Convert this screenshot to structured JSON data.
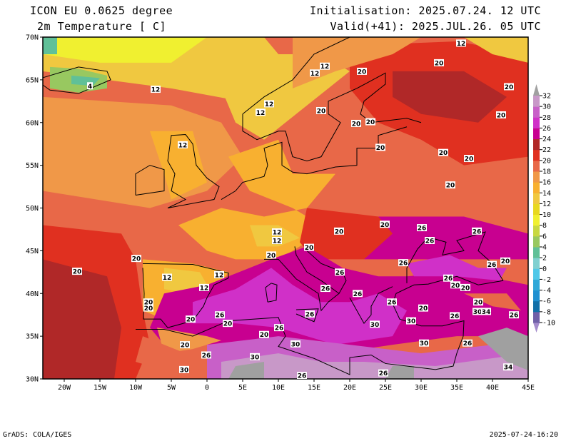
{
  "header": {
    "model": "ICON EU 0.0625 degree",
    "variable": "2m Temperature [ C]",
    "initialisation": "Initialisation: 2025.07.24. 12 UTC",
    "valid": "Valid(+41): 2025.JUL.26. 05 UTC"
  },
  "footer": {
    "software": "GrADS: COLA/IGES",
    "timestamp": "2025-07-24-16:20"
  },
  "axes": {
    "lat_labels": [
      "70N",
      "65N",
      "60N",
      "55N",
      "50N",
      "45N",
      "40N",
      "35N",
      "30N"
    ],
    "lat_values": [
      70,
      65,
      60,
      55,
      50,
      45,
      40,
      35,
      30
    ],
    "lon_labels": [
      "20W",
      "15W",
      "10W",
      "5W",
      "0",
      "5E",
      "10E",
      "15E",
      "20E",
      "25E",
      "30E",
      "35E",
      "40E",
      "45E"
    ],
    "lon_values": [
      -20,
      -15,
      -10,
      -5,
      0,
      5,
      10,
      15,
      20,
      25,
      30,
      35,
      40,
      45
    ],
    "lon_range": [
      -23,
      45
    ],
    "lat_range": [
      30,
      70
    ]
  },
  "colorbar": {
    "levels": [
      "-10",
      "-8",
      "-6",
      "-4",
      "-2",
      "0",
      "2",
      "4",
      "6",
      "8",
      "10",
      "12",
      "14",
      "16",
      "18",
      "20",
      "22",
      "24",
      "26",
      "28",
      "30",
      "32"
    ],
    "colors": [
      "#a48ccc",
      "#7060a8",
      "#1270a8",
      "#2090d0",
      "#30a8d8",
      "#50c8e8",
      "#80d0d0",
      "#60c098",
      "#98c860",
      "#c8d840",
      "#f0f030",
      "#e8d820",
      "#f0c840",
      "#f8b030",
      "#f09848",
      "#e86848",
      "#e03020",
      "#b02828",
      "#c80090",
      "#d030c8",
      "#c860c8",
      "#c898c8",
      "#a0a0a0"
    ]
  },
  "contour_labels": [
    {
      "v": "12",
      "lon": 35.6,
      "lat": 69.3
    },
    {
      "v": "20",
      "lon": 32.5,
      "lat": 67
    },
    {
      "v": "12",
      "lon": 16.5,
      "lat": 66.6
    },
    {
      "v": "12",
      "lon": 15.1,
      "lat": 65.8
    },
    {
      "v": "20",
      "lon": 21.7,
      "lat": 66
    },
    {
      "v": "4",
      "lon": -16.4,
      "lat": 64.3
    },
    {
      "v": "12",
      "lon": -7.2,
      "lat": 63.9
    },
    {
      "v": "20",
      "lon": 42.3,
      "lat": 64.2
    },
    {
      "v": "12",
      "lon": 8.7,
      "lat": 62.2
    },
    {
      "v": "20",
      "lon": 16,
      "lat": 61.4
    },
    {
      "v": "12",
      "lon": 7.5,
      "lat": 61.2
    },
    {
      "v": "20",
      "lon": 20.9,
      "lat": 59.9
    },
    {
      "v": "20",
      "lon": 22.9,
      "lat": 60.1
    },
    {
      "v": "20",
      "lon": 41.2,
      "lat": 60.9
    },
    {
      "v": "20",
      "lon": 24.3,
      "lat": 57.1
    },
    {
      "v": "12",
      "lon": -3.4,
      "lat": 57.4
    },
    {
      "v": "20",
      "lon": 33.1,
      "lat": 56.5
    },
    {
      "v": "20",
      "lon": 36.7,
      "lat": 55.8
    },
    {
      "v": "20",
      "lon": 34.1,
      "lat": 52.7
    },
    {
      "v": "20",
      "lon": 24.9,
      "lat": 48.1
    },
    {
      "v": "26",
      "lon": 30.1,
      "lat": 47.7
    },
    {
      "v": "26",
      "lon": 37.8,
      "lat": 47.3
    },
    {
      "v": "12",
      "lon": 9.8,
      "lat": 47.2
    },
    {
      "v": "20",
      "lon": 18.5,
      "lat": 47.3
    },
    {
      "v": "12",
      "lon": 9.8,
      "lat": 46.2
    },
    {
      "v": "26",
      "lon": 31.2,
      "lat": 46.2
    },
    {
      "v": "20",
      "lon": 14.3,
      "lat": 45.4
    },
    {
      "v": "20",
      "lon": 9,
      "lat": 44.5
    },
    {
      "v": "20",
      "lon": -9.9,
      "lat": 44.1
    },
    {
      "v": "20",
      "lon": -18.2,
      "lat": 42.6
    },
    {
      "v": "20",
      "lon": 41.8,
      "lat": 43.8
    },
    {
      "v": "26",
      "lon": 39.9,
      "lat": 43.4
    },
    {
      "v": "26",
      "lon": 18.6,
      "lat": 42.5
    },
    {
      "v": "26",
      "lon": 27.5,
      "lat": 43.6
    },
    {
      "v": "12",
      "lon": -5.6,
      "lat": 41.9
    },
    {
      "v": "12",
      "lon": 1.7,
      "lat": 42.2
    },
    {
      "v": "26",
      "lon": 33.8,
      "lat": 41.8
    },
    {
      "v": "20",
      "lon": 34.8,
      "lat": 41
    },
    {
      "v": "20",
      "lon": 36.2,
      "lat": 40.7
    },
    {
      "v": "12",
      "lon": -0.4,
      "lat": 40.7
    },
    {
      "v": "26",
      "lon": 16.6,
      "lat": 40.6
    },
    {
      "v": "26",
      "lon": 21.1,
      "lat": 40
    },
    {
      "v": "26",
      "lon": 25.9,
      "lat": 39
    },
    {
      "v": "20",
      "lon": -8.2,
      "lat": 39
    },
    {
      "v": "20",
      "lon": -8.2,
      "lat": 38.3
    },
    {
      "v": "20",
      "lon": 38,
      "lat": 39
    },
    {
      "v": "20",
      "lon": 30.3,
      "lat": 38.3
    },
    {
      "v": "26",
      "lon": 1.8,
      "lat": 37.5
    },
    {
      "v": "30",
      "lon": 37.9,
      "lat": 37.9
    },
    {
      "v": "34",
      "lon": 39.1,
      "lat": 37.9
    },
    {
      "v": "26",
      "lon": 43,
      "lat": 37.5
    },
    {
      "v": "26",
      "lon": 34.7,
      "lat": 37.4
    },
    {
      "v": "20",
      "lon": -2.3,
      "lat": 37
    },
    {
      "v": "20",
      "lon": 2.9,
      "lat": 36.5
    },
    {
      "v": "26",
      "lon": 14.4,
      "lat": 37.6
    },
    {
      "v": "30",
      "lon": 23.5,
      "lat": 36.4
    },
    {
      "v": "30",
      "lon": 28.6,
      "lat": 36.8
    },
    {
      "v": "20",
      "lon": 8,
      "lat": 35.2
    },
    {
      "v": "26",
      "lon": 10.1,
      "lat": 36
    },
    {
      "v": "30",
      "lon": 12.4,
      "lat": 34.1
    },
    {
      "v": "20",
      "lon": -3.1,
      "lat": 34
    },
    {
      "v": "26",
      "lon": -0.1,
      "lat": 32.8
    },
    {
      "v": "30",
      "lon": 30.4,
      "lat": 34.2
    },
    {
      "v": "26",
      "lon": 36.5,
      "lat": 34.2
    },
    {
      "v": "30",
      "lon": 6.7,
      "lat": 32.6
    },
    {
      "v": "30",
      "lon": -3.2,
      "lat": 31.1
    },
    {
      "v": "26",
      "lon": 13.3,
      "lat": 30.4
    },
    {
      "v": "26",
      "lon": 24.7,
      "lat": 30.7
    },
    {
      "v": "34",
      "lon": 42.2,
      "lat": 31.4
    }
  ]
}
